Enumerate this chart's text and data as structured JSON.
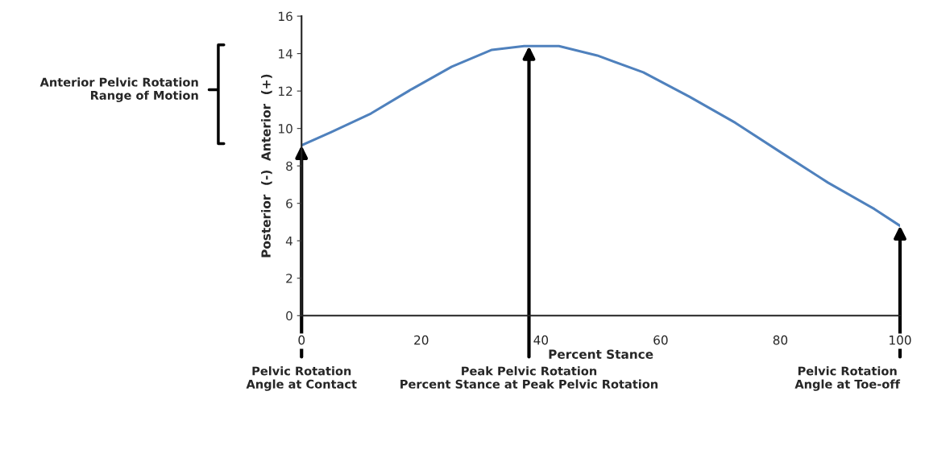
{
  "chart_data": {
    "type": "line",
    "xlabel": "Percent Stance",
    "ylabel": "Posterior  (-)  Anterior  (+)",
    "x": [
      0,
      4.9,
      11.6,
      18.4,
      25.1,
      31.8,
      37.2,
      43,
      49.4,
      57.1,
      64.8,
      72.5,
      80.2,
      88,
      95.7,
      100
    ],
    "series": [
      {
        "color": "#4f81bd",
        "values": [
          9.1,
          9.8,
          10.8,
          12.1,
          13.3,
          14.2,
          14.4,
          14.4,
          13.9,
          13.0,
          11.7,
          10.3,
          8.7,
          7.1,
          5.7,
          4.8
        ]
      }
    ],
    "xlim": [
      0,
      100
    ],
    "xticks": [
      0,
      20,
      40,
      60,
      80,
      100
    ],
    "ylim": [
      0,
      16
    ],
    "yticks": [
      0,
      2,
      4,
      6,
      8,
      10,
      12,
      14,
      16
    ],
    "grid": false,
    "marker": "none",
    "line_style": "solid",
    "annotations": [
      "Anterior Pelvic Rotation\nRange of Motion",
      {
        "text": "Pelvic Rotation\nAngle at Contact",
        "x": 0,
        "y": 9.1
      },
      {
        "text": "Peak Pelvic Rotation\nPercent Stance at Peak Pelvic Rotation",
        "x": 38,
        "y": 14.4
      },
      {
        "text": "Pelvic Rotation\nAngle at Toe-off",
        "x": 100,
        "y": 4.8
      }
    ]
  }
}
